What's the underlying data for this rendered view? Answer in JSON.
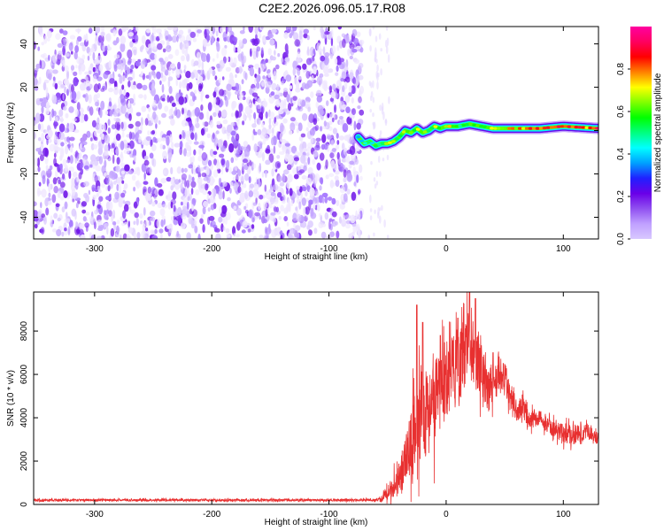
{
  "title": "C2E2.2026.096.05.17.R08",
  "colors": {
    "snr_line": "#e83030",
    "colorbar_stops": [
      "#d8c8ff",
      "#c0a0ff",
      "#9050f0",
      "#6a00e8",
      "#2020ff",
      "#00a0ff",
      "#00ffff",
      "#00ff80",
      "#00ff00",
      "#80ff00",
      "#ffff00",
      "#ff8000",
      "#ff0000",
      "#ff0060",
      "#ff00a0"
    ]
  },
  "chart_data": [
    {
      "type": "heatmap",
      "name": "spectrogram",
      "xlabel": "Height of straight line (km)",
      "ylabel": "Frequency (Hz)",
      "xlim": [
        -352,
        130
      ],
      "ylim": [
        -50,
        48
      ],
      "xticks": [
        -300,
        -200,
        -100,
        0,
        100
      ],
      "xtick_labels": [
        "-300",
        "-200",
        "-100",
        "0",
        "100"
      ],
      "yticks": [
        -40,
        -20,
        0,
        20,
        40
      ],
      "ytick_labels": [
        "-40",
        "-20",
        "0",
        "20",
        "40"
      ],
      "noise_region_end_km": -72,
      "signal_track": {
        "x": [
          -75,
          -70,
          -65,
          -60,
          -55,
          -50,
          -45,
          -40,
          -35,
          -30,
          -25,
          -20,
          -15,
          -10,
          -5,
          0,
          10,
          20,
          30,
          40,
          60,
          80,
          100,
          130
        ],
        "freq": [
          -3,
          -6,
          -5,
          -7,
          -6,
          -6,
          -5,
          -3,
          0,
          -1,
          1,
          -1,
          0,
          2,
          1,
          2,
          2,
          3,
          2,
          1,
          1,
          1,
          2,
          1
        ],
        "amplitude": [
          0.4,
          0.55,
          0.5,
          0.6,
          0.65,
          0.7,
          0.65,
          0.6,
          0.7,
          0.65,
          0.75,
          0.7,
          0.6,
          0.75,
          0.7,
          0.8,
          0.6,
          0.6,
          0.65,
          0.7,
          0.85,
          0.9,
          0.95,
          0.9
        ]
      },
      "colorbar": {
        "label": "Normalized spectral amplitude",
        "range": [
          0,
          1
        ],
        "ticks": [
          0.0,
          0.2,
          0.4,
          0.6,
          0.8
        ],
        "tick_labels": [
          "0.0",
          "0.2",
          "0.4",
          "0.6",
          "0.8"
        ]
      }
    },
    {
      "type": "line",
      "name": "snr",
      "xlabel": "Height of straight line (km)",
      "ylabel": "SNR (10 * v/v)",
      "xlim": [
        -352,
        130
      ],
      "ylim": [
        0,
        9800
      ],
      "xticks": [
        -300,
        -200,
        -100,
        0,
        100
      ],
      "xtick_labels": [
        "-300",
        "-200",
        "-100",
        "0",
        "100"
      ],
      "yticks": [
        0,
        2000,
        4000,
        6000,
        8000
      ],
      "ytick_labels": [
        "0",
        "2000",
        "4000",
        "6000",
        "8000"
      ],
      "envelope": {
        "x": [
          -352,
          -60,
          -55,
          -50,
          -45,
          -40,
          -35,
          -30,
          -25,
          -20,
          -15,
          -10,
          -5,
          0,
          5,
          10,
          15,
          20,
          25,
          30,
          35,
          40,
          45,
          50,
          55,
          60,
          65,
          70,
          80,
          90,
          100,
          110,
          120,
          130
        ],
        "mean": [
          200,
          200,
          250,
          600,
          800,
          1200,
          1800,
          2600,
          3800,
          4500,
          4200,
          4600,
          5200,
          5800,
          6200,
          6000,
          7000,
          7400,
          6800,
          6500,
          5200,
          5600,
          6000,
          5800,
          5000,
          4300,
          4600,
          3900,
          4000,
          3500,
          3300,
          3200,
          3400,
          3000
        ],
        "spread": [
          80,
          80,
          200,
          500,
          800,
          1200,
          1800,
          2400,
          2800,
          3200,
          3000,
          2800,
          2800,
          2600,
          2400,
          2400,
          2400,
          2200,
          2200,
          2000,
          1800,
          1400,
          1200,
          1200,
          1000,
          800,
          700,
          600,
          500,
          500,
          600,
          700,
          500,
          400
        ],
        "peaks": [
          [
            -25,
            9200
          ],
          [
            20,
            9900
          ],
          [
            25,
            9500
          ],
          [
            10,
            8600
          ],
          [
            -20,
            8400
          ],
          [
            -5,
            7800
          ],
          [
            40,
            7000
          ]
        ]
      }
    }
  ]
}
